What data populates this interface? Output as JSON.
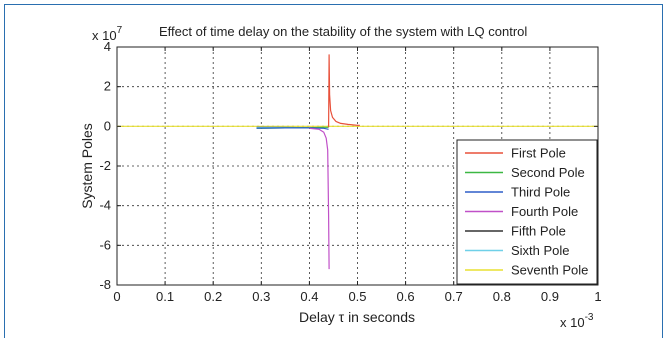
{
  "chart_data": {
    "type": "line",
    "title": "Effect of time delay on the stability of the system with LQ control",
    "xlabel": "Delay τ in seconds",
    "ylabel": "System Poles",
    "y_multiplier_base": "x 10",
    "y_multiplier_exp": "7",
    "x_multiplier_base": "x 10",
    "x_multiplier_exp": "-3",
    "xlim": [
      0,
      1
    ],
    "ylim": [
      -8,
      4
    ],
    "x_ticks": [
      0,
      0.1,
      0.2,
      0.3,
      0.4,
      0.5,
      0.6,
      0.7,
      0.8,
      0.9,
      1
    ],
    "x_tick_labels": [
      "0",
      "0.1",
      "0.2",
      "0.3",
      "0.4",
      "0.5",
      "0.6",
      "0.7",
      "0.8",
      "0.9",
      "1"
    ],
    "y_ticks": [
      -8,
      -6,
      -4,
      -2,
      0,
      2,
      4
    ],
    "y_tick_labels": [
      "-8",
      "-6",
      "-4",
      "-2",
      "0",
      "2",
      "4"
    ],
    "grid": true,
    "legend_position": "bottom-right",
    "series": [
      {
        "name": "First Pole",
        "color": "#e8503a",
        "x": [
          0.44,
          0.441,
          0.442,
          0.444,
          0.448,
          0.455,
          0.465,
          0.48,
          0.5,
          0.505
        ],
        "y": [
          -0.05,
          3.6,
          1.6,
          0.8,
          0.45,
          0.25,
          0.15,
          0.1,
          0.05,
          0.05
        ]
      },
      {
        "name": "Second Pole",
        "color": "#3cb843",
        "x": [
          0.29,
          0.3,
          0.35,
          0.4,
          0.43,
          0.44
        ],
        "y": [
          -0.1,
          -0.1,
          -0.08,
          -0.07,
          -0.05,
          -0.05
        ]
      },
      {
        "name": "Third Pole",
        "color": "#2f5fc8",
        "x": [
          0.29,
          0.3,
          0.35,
          0.4,
          0.43,
          0.44
        ],
        "y": [
          -0.09,
          -0.09,
          -0.08,
          -0.08,
          -0.1,
          -0.15
        ]
      },
      {
        "name": "Fourth Pole",
        "color": "#c050c8",
        "x": [
          0.4,
          0.42,
          0.43,
          0.435,
          0.438,
          0.44,
          0.441
        ],
        "y": [
          -0.1,
          -0.15,
          -0.3,
          -0.6,
          -1.2,
          -4.5,
          -7.2
        ]
      },
      {
        "name": "Fifth Pole",
        "color": "#333333",
        "x": [
          0.29,
          0.3,
          0.35,
          0.4,
          0.43
        ],
        "y": [
          -0.05,
          -0.05,
          -0.06,
          -0.07,
          -0.08
        ]
      },
      {
        "name": "Sixth Pole",
        "color": "#6fd0e8",
        "x": [
          0.29,
          0.3,
          0.35,
          0.4,
          0.43
        ],
        "y": [
          -0.06,
          -0.06,
          -0.06,
          -0.07,
          -0.07
        ]
      },
      {
        "name": "Seventh Pole",
        "color": "#e8e030",
        "x": [
          0,
          1
        ],
        "y": [
          0,
          0
        ]
      }
    ]
  }
}
